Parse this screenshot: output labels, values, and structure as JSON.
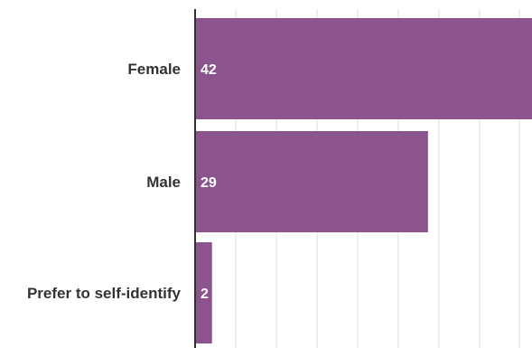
{
  "chart_data": {
    "type": "bar",
    "orientation": "horizontal",
    "categories": [
      "Female",
      "Male",
      "Prefer to self-identify"
    ],
    "values": [
      42,
      29,
      2
    ],
    "value_labels": [
      "42",
      "29",
      "2"
    ],
    "title": "",
    "xlabel": "",
    "ylabel": "",
    "xlim": [
      0,
      42
    ],
    "grid": true,
    "legend": "none",
    "colors": {
      "bar": "#8b548f",
      "grid": "#dddddd",
      "axis": "#333333",
      "category_text": "#333333",
      "value_text": "#ffffff"
    }
  }
}
